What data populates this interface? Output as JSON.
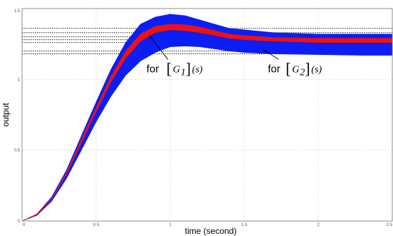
{
  "chart_data": {
    "type": "area",
    "xlabel": "time (second)",
    "ylabel": "output",
    "xlim": [
      0,
      2.5
    ],
    "ylim": [
      0,
      1.5
    ],
    "x_ticks": [
      "0",
      "0.5",
      "1",
      "1.5",
      "2",
      "2.5"
    ],
    "y_ticks": [
      "0",
      "0.5",
      "1",
      "1.5"
    ],
    "grid": true,
    "colors": {
      "outer_band": "#0b1ef5",
      "inner_band": "#ee1111",
      "grid": "#bfbfbf"
    },
    "series": [
      {
        "color": "#0b1ef5",
        "x": [
          0,
          0.1,
          0.2,
          0.3,
          0.4,
          0.5,
          0.6,
          0.7,
          0.8,
          0.9,
          1.0,
          1.1,
          1.2,
          1.3,
          1.4,
          1.5,
          1.7,
          2.0,
          2.3,
          2.5
        ],
        "lower": [
          0,
          0.04,
          0.14,
          0.3,
          0.5,
          0.7,
          0.88,
          1.03,
          1.13,
          1.19,
          1.23,
          1.235,
          1.23,
          1.215,
          1.2,
          1.19,
          1.18,
          1.175,
          1.17,
          1.17
        ],
        "upper": [
          0,
          0.05,
          0.17,
          0.36,
          0.6,
          0.84,
          1.07,
          1.26,
          1.39,
          1.44,
          1.46,
          1.45,
          1.42,
          1.39,
          1.36,
          1.35,
          1.33,
          1.32,
          1.32,
          1.32
        ]
      },
      {
        "color": "#ee1111",
        "x": [
          0,
          0.1,
          0.2,
          0.3,
          0.4,
          0.5,
          0.6,
          0.7,
          0.8,
          0.9,
          1.0,
          1.1,
          1.2,
          1.3,
          1.4,
          1.5,
          1.7,
          2.0,
          2.3,
          2.5
        ],
        "lower": [
          0,
          0.045,
          0.155,
          0.33,
          0.55,
          0.77,
          0.98,
          1.15,
          1.27,
          1.33,
          1.35,
          1.345,
          1.33,
          1.31,
          1.29,
          1.28,
          1.27,
          1.26,
          1.26,
          1.26
        ],
        "upper": [
          0,
          0.05,
          0.16,
          0.345,
          0.575,
          0.8,
          1.02,
          1.2,
          1.32,
          1.375,
          1.39,
          1.385,
          1.37,
          1.345,
          1.32,
          1.31,
          1.295,
          1.29,
          1.29,
          1.29
        ]
      }
    ],
    "reference_lines_y": [
      1.36,
      1.33,
      1.3,
      1.28,
      1.26,
      1.2,
      1.18
    ],
    "annotations": [
      {
        "text": "for",
        "math": "G",
        "subscript": "1",
        "suffix": "(s)",
        "points_to": [
          0.86,
          1.31
        ],
        "label_at": [
          0.85,
          1.07
        ]
      },
      {
        "text": "for",
        "math": "G",
        "subscript": "2",
        "suffix": "(s)",
        "points_to": [
          1.63,
          1.21
        ],
        "label_at": [
          1.66,
          1.07
        ]
      }
    ]
  }
}
